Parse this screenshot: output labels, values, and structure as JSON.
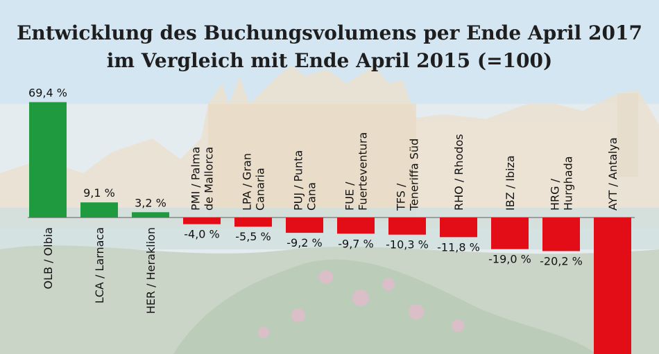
{
  "title_line1": "Entwicklung des Buchungsvolumens per Ende April 2017",
  "title_line2": "im Vergleich mit Ende April 2015 (=100)",
  "chart_data": {
    "type": "bar",
    "categories": [
      [
        "OLB / Olbia"
      ],
      [
        "LCA / Larnaca"
      ],
      [
        "HER / Heraklion"
      ],
      [
        "PMI / Palma",
        "de Mallorca"
      ],
      [
        "LPA / Gran",
        "Canaria"
      ],
      [
        "PUJ / Punta",
        "Cana"
      ],
      [
        "FUE /",
        "Fuerteventura"
      ],
      [
        "TFS /",
        "Teneriffa Süd"
      ],
      [
        "RHO / Rhodos"
      ],
      [
        "IBZ / Ibiza"
      ],
      [
        "HRG /",
        "Hurghada"
      ],
      [
        "AYT / Antalya"
      ]
    ],
    "values": [
      69.4,
      9.1,
      3.2,
      -4.0,
      -5.5,
      -9.2,
      -9.7,
      -10.3,
      -11.8,
      -19.0,
      -20.2,
      null
    ],
    "value_labels": [
      "69,4 %",
      "9,1 %",
      "3,2 %",
      "-4,0 %",
      "-5,5 %",
      "-9,2 %",
      "-9,7 %",
      "-10,3 %",
      "-11,8 %",
      "-19,0 %",
      "-20,2 %",
      ""
    ],
    "colors": {
      "positive": "#1f9a3e",
      "negative": "#e30d17"
    },
    "axis_line": true,
    "grid": false
  }
}
